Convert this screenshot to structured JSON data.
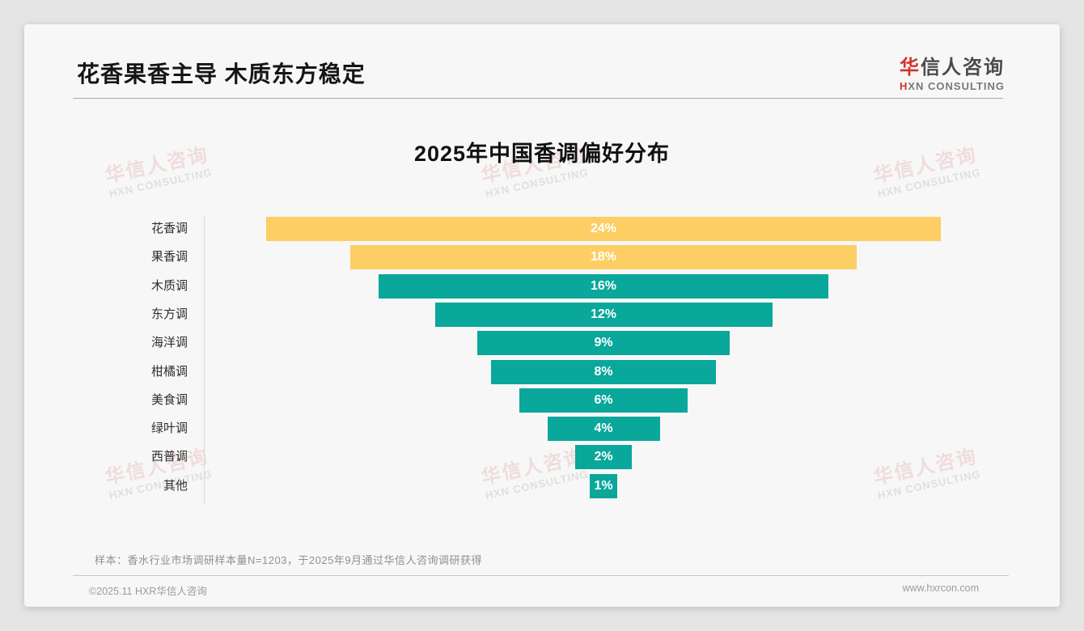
{
  "page": {
    "title": "花香果香主导 木质东方稳定"
  },
  "logo": {
    "zh_first": "华",
    "zh_rest": "信人咨询",
    "en_first": "H",
    "en_rest": "XN CONSULTING"
  },
  "watermark": {
    "line1": "华信人咨询",
    "line2": "HXN CONSULTING"
  },
  "chart_data": {
    "type": "bar",
    "variant": "centered-funnel",
    "title": "2025年中国香调偏好分布",
    "categories": [
      "花香调",
      "果香调",
      "木质调",
      "东方调",
      "海洋调",
      "柑橘调",
      "美食调",
      "绿叶调",
      "西普调",
      "其他"
    ],
    "values": [
      24,
      18,
      16,
      12,
      9,
      8,
      6,
      4,
      2,
      1
    ],
    "unit": "%",
    "bar_colors": [
      "#fcce63",
      "#fcce63",
      "#0aa79b",
      "#0aa79b",
      "#0aa79b",
      "#0aa79b",
      "#0aa79b",
      "#0aa79b",
      "#0aa79b",
      "#0aa79b"
    ],
    "colors": {
      "highlight": "#fcce63",
      "base": "#0aa79b"
    },
    "value_label_color": "#ffffff",
    "legend": "none",
    "grid": "off",
    "xlim_percent": [
      0,
      24
    ]
  },
  "note": "样本：香水行业市场调研样本量N=1203，于2025年9月通过华信人咨询调研获得",
  "footer": {
    "left": "©2025.11 HXR华信人咨询",
    "right": "www.hxrcon.com"
  }
}
